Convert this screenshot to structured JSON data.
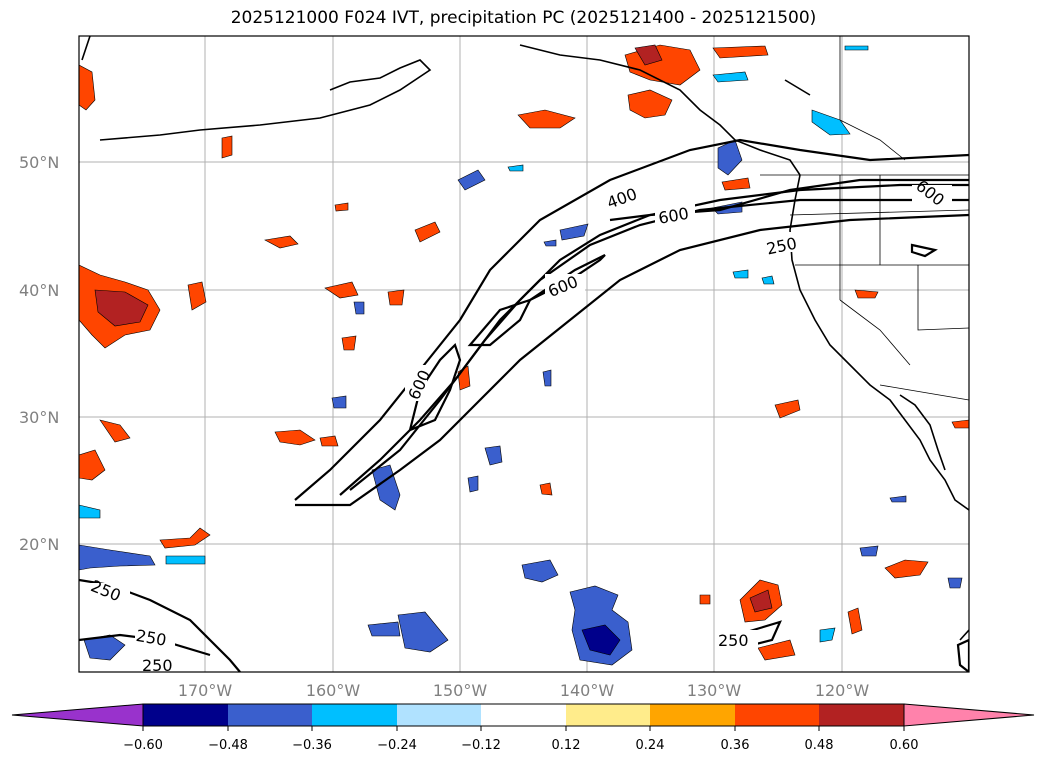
{
  "title": "2025121000 F024 IVT, precipitation PC (2025121400 - 2025121500)",
  "map": {
    "lat_labels": [
      "20°N",
      "30°N",
      "40°N",
      "50°N"
    ],
    "lon_labels": [
      "170°W",
      "160°W",
      "150°W",
      "140°W",
      "130°W",
      "120°W"
    ],
    "ivt_contour_labels": [
      "400",
      "600",
      "600",
      "600",
      "600",
      "250",
      "250",
      "250",
      "250",
      "250"
    ]
  },
  "colorbar": {
    "ticks": [
      "−0.60",
      "−0.48",
      "−0.36",
      "−0.24",
      "−0.12",
      "0.12",
      "0.24",
      "0.36",
      "0.48",
      "0.60"
    ],
    "colors": [
      "#9932cc",
      "#00008b",
      "#3a5fcd",
      "#00bfff",
      "#b0e2ff",
      "#ffffff",
      "#ffec8b",
      "#ffa500",
      "#ff4500",
      "#b22222",
      "#ff82ab"
    ]
  }
}
